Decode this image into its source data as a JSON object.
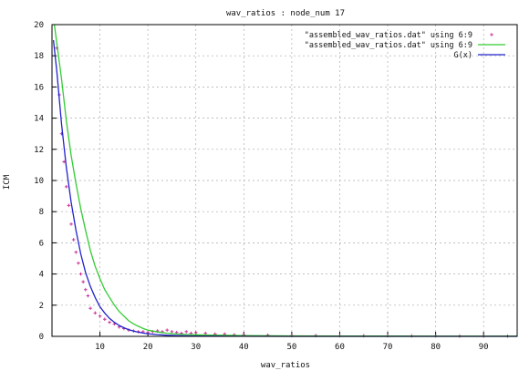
{
  "chart_data": {
    "type": "scatter",
    "title": "wav_ratios : node_num 17",
    "xlabel": "wav_ratios",
    "ylabel": "ICM",
    "xlim": [
      0,
      97
    ],
    "ylim": [
      0,
      20
    ],
    "x_ticks": [
      10,
      20,
      30,
      40,
      50,
      60,
      70,
      80,
      90
    ],
    "y_ticks": [
      0,
      2,
      4,
      6,
      8,
      10,
      12,
      14,
      16,
      18,
      20
    ],
    "grid": true,
    "legend_position": "top-right",
    "series": [
      {
        "name": "\"assembled_wav_ratios.dat\" using 6:9",
        "style": "points",
        "color": "#cc3399",
        "x": [
          1,
          1.5,
          2,
          2.5,
          3,
          3.5,
          4,
          4.5,
          5,
          5.5,
          6,
          6.5,
          7,
          7.5,
          8,
          9,
          10,
          11,
          12,
          13,
          14,
          15,
          16,
          17,
          18,
          19,
          20,
          21,
          22,
          23,
          24,
          25,
          26,
          27,
          28,
          29,
          30,
          32,
          34,
          36,
          38,
          40,
          45,
          50,
          55,
          60,
          65,
          70,
          75,
          80,
          85,
          90,
          95
        ],
        "y": [
          18.5,
          15.5,
          13.0,
          11.2,
          9.6,
          8.4,
          7.2,
          6.2,
          5.4,
          4.7,
          4.0,
          3.5,
          3.0,
          2.6,
          1.8,
          1.5,
          1.3,
          1.1,
          0.9,
          0.8,
          0.6,
          0.5,
          0.4,
          0.35,
          0.3,
          0.3,
          0.25,
          0.3,
          0.35,
          0.3,
          0.4,
          0.3,
          0.25,
          0.2,
          0.3,
          0.2,
          0.25,
          0.2,
          0.15,
          0.15,
          0.1,
          0.1,
          0.08,
          0.05,
          0.05,
          0.04,
          0.04,
          0.03,
          0.03,
          0.03,
          0.02,
          0.02,
          0.02
        ]
      },
      {
        "name": "\"assembled_wav_ratios.dat\" using 6:9",
        "style": "line",
        "color": "#33cc33",
        "x": [
          0.5,
          2,
          3,
          4,
          5,
          6,
          7,
          8,
          9,
          10,
          11,
          12,
          13,
          14,
          15,
          16,
          17,
          18,
          19,
          20,
          22,
          24,
          26,
          28,
          30,
          35,
          40,
          50,
          60,
          70,
          80,
          90,
          97
        ],
        "y": [
          20,
          16.5,
          13.8,
          11.6,
          9.8,
          8.2,
          6.8,
          5.5,
          4.5,
          3.7,
          3.0,
          2.5,
          2.0,
          1.6,
          1.3,
          1.0,
          0.8,
          0.65,
          0.5,
          0.4,
          0.28,
          0.2,
          0.15,
          0.12,
          0.1,
          0.07,
          0.05,
          0.03,
          0.02,
          0.015,
          0.01,
          0.01,
          0.01
        ]
      },
      {
        "name": "G(x)",
        "style": "line",
        "color": "#2222cc",
        "x": [
          0.3,
          1,
          2,
          3,
          4,
          5,
          6,
          7,
          8,
          9,
          10,
          11,
          12,
          13,
          14,
          15,
          16,
          17,
          18,
          19,
          20,
          22,
          24,
          26,
          28,
          30,
          35,
          40,
          50,
          60,
          70,
          80,
          90,
          97
        ],
        "y": [
          19.0,
          17.0,
          13.6,
          10.8,
          8.6,
          6.8,
          5.3,
          4.1,
          3.2,
          2.5,
          1.9,
          1.5,
          1.15,
          0.9,
          0.7,
          0.55,
          0.43,
          0.34,
          0.27,
          0.21,
          0.17,
          0.11,
          0.07,
          0.05,
          0.035,
          0.025,
          0.012,
          0.006,
          0.002,
          0.001,
          0.0005,
          0.0003,
          0.0002,
          0.0001
        ]
      }
    ]
  }
}
